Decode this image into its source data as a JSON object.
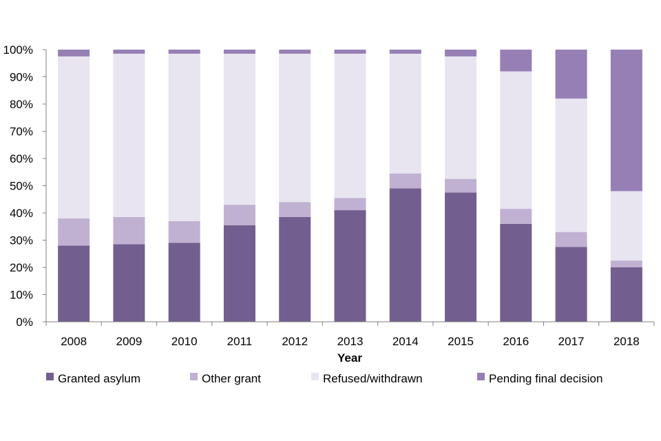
{
  "chart_data": {
    "type": "bar",
    "stacked": true,
    "percent_stacked": true,
    "categories": [
      "2008",
      "2009",
      "2010",
      "2011",
      "2012",
      "2013",
      "2014",
      "2015",
      "2016",
      "2017",
      "2018"
    ],
    "series": [
      {
        "name": "Granted asylum",
        "color": "#725e8f",
        "values": [
          28,
          28.5,
          29,
          35.5,
          38.5,
          41,
          49,
          47.5,
          36,
          27.5,
          20
        ]
      },
      {
        "name": "Other grant",
        "color": "#c0b1d2",
        "values": [
          10,
          10,
          8,
          7.5,
          5.5,
          4.5,
          5.5,
          5,
          5.5,
          5.5,
          2.5
        ]
      },
      {
        "name": "Refused/withdrawn",
        "color": "#e8e4f0",
        "values": [
          59.5,
          60,
          61.5,
          55.5,
          54.5,
          53,
          44,
          45,
          50.5,
          49,
          25.5
        ]
      },
      {
        "name": "Pending final decision",
        "color": "#967fb5",
        "values": [
          2.5,
          1.5,
          1.5,
          1.5,
          1.5,
          1.5,
          1.5,
          2.5,
          8,
          18,
          52
        ]
      }
    ],
    "xlabel": "Year",
    "ylabel": "",
    "ylim": [
      0,
      100
    ],
    "yticks": [
      "0%",
      "10%",
      "20%",
      "30%",
      "40%",
      "50%",
      "60%",
      "70%",
      "80%",
      "90%",
      "100%"
    ],
    "grid": false,
    "legend_position": "bottom"
  }
}
